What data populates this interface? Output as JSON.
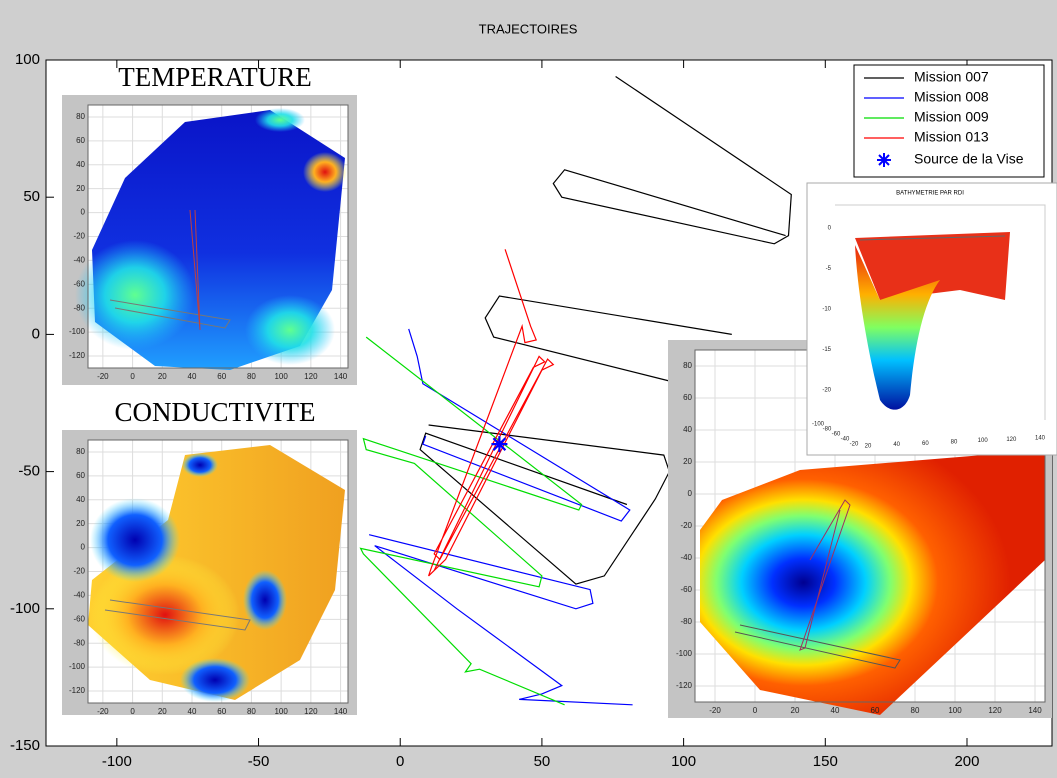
{
  "chart_data": [
    {
      "type": "line",
      "title": "TRAJECTOIRES",
      "xlim": [
        -125,
        230
      ],
      "ylim": [
        -150,
        100
      ],
      "xticks": [
        -100,
        -50,
        0,
        50,
        100,
        150,
        200
      ],
      "yticks": [
        100,
        50,
        0,
        -50,
        -100,
        -150
      ],
      "legend": "upper right",
      "series": [
        {
          "name": "Mission 007",
          "color": "#000000",
          "x": [
            76,
            138,
            137,
            132,
            57,
            54,
            58,
            136,
            null,
            117,
            35,
            30,
            33,
            95,
            null,
            10,
            93,
            95,
            90,
            72,
            62,
            7,
            9,
            80
          ],
          "values": [
            94,
            51,
            36,
            33,
            50,
            55,
            60,
            36,
            null,
            0,
            14,
            6,
            -1,
            -17,
            null,
            -33,
            -44,
            -50,
            -60,
            -88,
            -91,
            -42,
            -36,
            -62
          ]
        },
        {
          "name": "Mission 008",
          "color": "#0000ff",
          "x": [
            3,
            6,
            8,
            81,
            78,
            8,
            9,
            null,
            -11,
            67,
            68,
            62,
            -9,
            20,
            57,
            50,
            42,
            82
          ],
          "values": [
            2,
            -8,
            -18,
            -64,
            -68,
            -40,
            -37,
            null,
            -73,
            -93,
            -98,
            -100,
            -77,
            -100,
            -128,
            -131,
            -133,
            -135
          ]
        },
        {
          "name": "Mission 009",
          "color": "#00dd00",
          "x": [
            -12,
            64,
            63,
            -13,
            -12,
            5,
            50,
            49,
            -14,
            -13,
            25,
            23,
            28,
            58
          ],
          "values": [
            -1,
            -62,
            -64,
            -38,
            -42,
            -47,
            -88,
            -92,
            -78,
            -80,
            -120,
            -123,
            -122,
            -135
          ]
        },
        {
          "name": "Mission 013",
          "color": "#ff0000",
          "x": [
            37,
            46,
            48,
            44,
            43,
            11,
            10,
            12,
            49,
            51,
            47,
            12,
            14,
            52,
            54,
            50,
            16,
            10
          ],
          "values": [
            31,
            3,
            -2,
            -3,
            3,
            -85,
            -88,
            -86,
            -8,
            -10,
            -12,
            -80,
            -82,
            -9,
            -11,
            -13,
            -82,
            -88
          ]
        }
      ],
      "marker": {
        "name": "Source de la Vise",
        "color": "#0000ff",
        "x": 35,
        "y": -40
      }
    },
    {
      "type": "heatmap",
      "title": "TEMPERATURE",
      "xlim": [
        -30,
        145
      ],
      "ylim": [
        -130,
        90
      ],
      "xticks": [
        -20,
        0,
        20,
        40,
        60,
        80,
        100,
        120,
        140
      ],
      "yticks": [
        80,
        60,
        40,
        20,
        0,
        -20,
        -40,
        -60,
        -80,
        -100,
        -120
      ],
      "grid": true
    },
    {
      "type": "heatmap",
      "title": "CONDUCTIVITE",
      "xlim": [
        -30,
        145
      ],
      "ylim": [
        -130,
        90
      ],
      "xticks": [
        -20,
        0,
        20,
        40,
        60,
        80,
        100,
        120,
        140
      ],
      "yticks": [
        80,
        60,
        40,
        20,
        0,
        -20,
        -40,
        -60,
        -80,
        -100,
        -120
      ],
      "grid": true
    },
    {
      "type": "heatmap",
      "xlim": [
        -30,
        145
      ],
      "ylim": [
        -130,
        90
      ],
      "xticks": [
        -20,
        0,
        20,
        40,
        60,
        80,
        100,
        120,
        140
      ],
      "yticks": [
        80,
        60,
        40,
        20,
        0,
        -20,
        -40,
        -60,
        -80,
        -100,
        -120
      ],
      "grid": true
    },
    {
      "type": "surface",
      "title": "BATHYMETRIE PAR RDI",
      "zlim": [
        -20,
        0
      ],
      "zticks": [
        0,
        -5,
        -10,
        -15,
        -20
      ],
      "xlim": [
        20,
        140
      ],
      "xticks": [
        20,
        40,
        60,
        80,
        100,
        120,
        140
      ],
      "ylim": [
        -100,
        -20
      ],
      "yticks": [
        -100,
        -80,
        -60,
        -40,
        -20
      ]
    }
  ]
}
